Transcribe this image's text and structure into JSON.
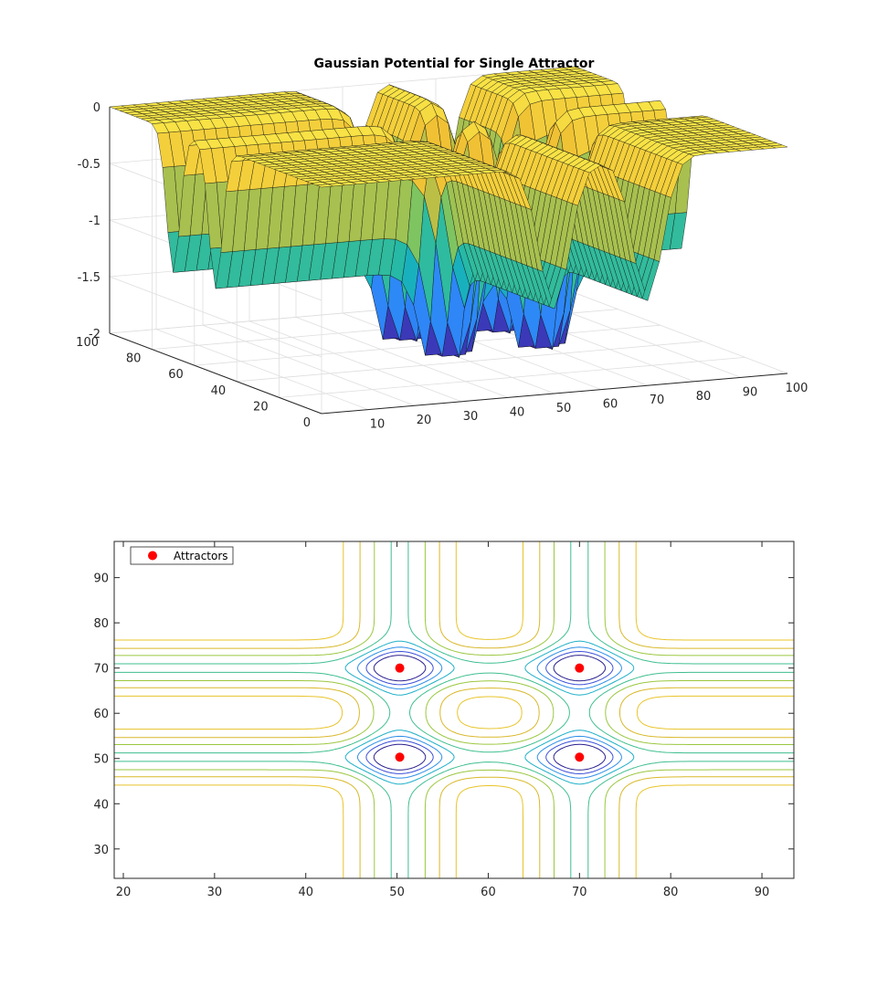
{
  "chart_data": [
    {
      "type": "surface",
      "title": "Gaussian Potential for Single Attractor",
      "xlim": [
        0,
        100
      ],
      "ylim": [
        0,
        100
      ],
      "zlim": [
        -2,
        0
      ],
      "x_ticks": [
        "10",
        "20",
        "30",
        "40",
        "50",
        "60",
        "70",
        "80",
        "90",
        "100"
      ],
      "y_ticks": [
        "0",
        "20",
        "40",
        "60",
        "80",
        "100"
      ],
      "z_ticks": [
        "0",
        "-0.5",
        "-1",
        "-1.5",
        "-2"
      ],
      "grid": true,
      "colormap": "parula",
      "wells": [
        {
          "x": 50,
          "y": 50,
          "depth": -2
        },
        {
          "x": 70,
          "y": 50,
          "depth": -2
        },
        {
          "x": 50,
          "y": 70,
          "depth": -2
        },
        {
          "x": 70,
          "y": 70,
          "depth": -2
        }
      ]
    },
    {
      "type": "contour",
      "xlim": [
        19,
        93.5
      ],
      "ylim": [
        23.5,
        98
      ],
      "x_ticks": [
        "20",
        "30",
        "40",
        "50",
        "60",
        "70",
        "80",
        "90"
      ],
      "y_ticks": [
        "30",
        "40",
        "50",
        "60",
        "70",
        "80",
        "90"
      ],
      "legend": {
        "label": "Attractors",
        "position": "top-left",
        "color": "#ff0000"
      },
      "attractors": [
        {
          "x": 50.3,
          "y": 70
        },
        {
          "x": 70,
          "y": 70
        },
        {
          "x": 50.3,
          "y": 50.3
        },
        {
          "x": 70,
          "y": 50.3
        }
      ],
      "contour_colors": [
        "#2a1f8f",
        "#3b4fd9",
        "#2d8fe8",
        "#1fb0c8",
        "#3fbf8f",
        "#9bc73f",
        "#d9b82a",
        "#e8c42a"
      ]
    }
  ]
}
